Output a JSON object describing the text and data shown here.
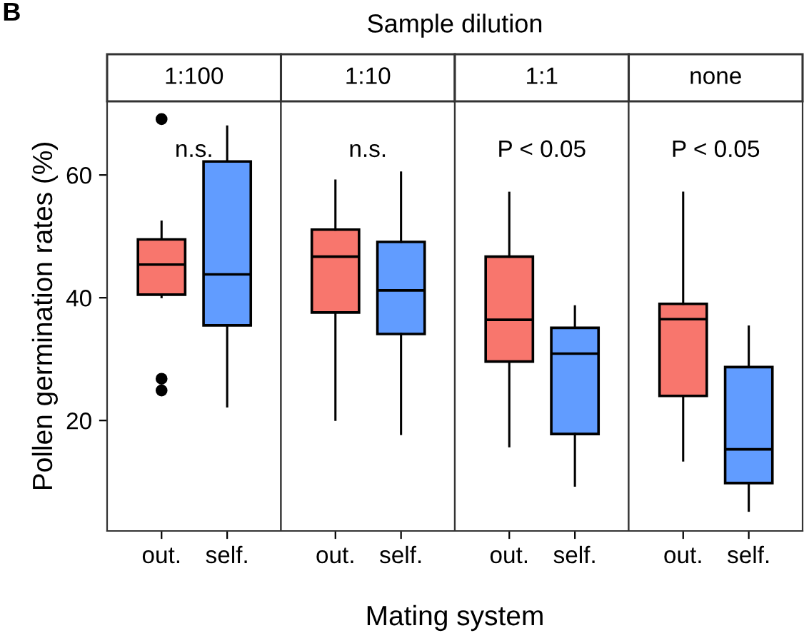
{
  "chart_data": [
    {
      "type": "box",
      "title": "1:100",
      "ylabel": "Pollen germination rates (%)",
      "xlabel": "Mating system",
      "categories": [
        "out.",
        "self."
      ],
      "colors": [
        "#f8766d",
        "#619cff"
      ],
      "ylim": [
        2,
        72
      ],
      "yticks": [
        20,
        40,
        60
      ],
      "grid": false,
      "annotations": [
        "B",
        "Sample dilution",
        "n.s."
      ],
      "boxes": [
        {
          "low": 40.1,
          "q1": 40.5,
          "median": 45.4,
          "q3": 49.5,
          "high": 52.4,
          "outliers": [
            69.1,
            26.8,
            24.9
          ]
        },
        {
          "low": 22.3,
          "q1": 35.5,
          "median": 43.8,
          "q3": 62.2,
          "high": 67.9
        }
      ]
    },
    {
      "type": "box",
      "title": "1:10",
      "categories": [
        "out.",
        "self."
      ],
      "colors": [
        "#f8766d",
        "#619cff"
      ],
      "ylim": [
        2,
        72
      ],
      "yticks": [
        20,
        40,
        60
      ],
      "grid": false,
      "tick_labels": "x",
      "annotations": [
        "n.s."
      ],
      "boxes": [
        {
          "low": 20.1,
          "q1": 37.6,
          "median": 46.7,
          "q3": 51.1,
          "high": 59.1
        },
        {
          "low": 17.8,
          "q1": 34.1,
          "median": 41.2,
          "q3": 49.1,
          "high": 60.4
        }
      ]
    },
    {
      "type": "box",
      "title": "1:1",
      "categories": [
        "out.",
        "self."
      ],
      "colors": [
        "#f8766d",
        "#619cff"
      ],
      "ylim": [
        2,
        72
      ],
      "yticks": [
        20,
        40,
        60
      ],
      "grid": false,
      "tick_labels": "x",
      "annotations": [
        "P < 0.05"
      ],
      "boxes": [
        {
          "low": 15.8,
          "q1": 29.6,
          "median": 36.4,
          "q3": 46.7,
          "high": 57.1
        },
        {
          "low": 9.4,
          "q1": 17.8,
          "median": 30.9,
          "q3": 35.1,
          "high": 38.6
        }
      ]
    },
    {
      "type": "box",
      "title": "none",
      "categories": [
        "out.",
        "self."
      ],
      "colors": [
        "#f8766d",
        "#619cff"
      ],
      "ylim": [
        2,
        72
      ],
      "yticks": [
        20,
        40,
        60
      ],
      "grid": false,
      "tick_labels": "x",
      "annotations": [
        "P < 0.05"
      ],
      "boxes": [
        {
          "low": 13.5,
          "q1": 24.0,
          "median": 36.5,
          "q3": 39.0,
          "high": 57.1
        },
        {
          "low": 5.3,
          "q1": 9.8,
          "median": 15.3,
          "q3": 28.7,
          "high": 35.3
        }
      ]
    }
  ]
}
